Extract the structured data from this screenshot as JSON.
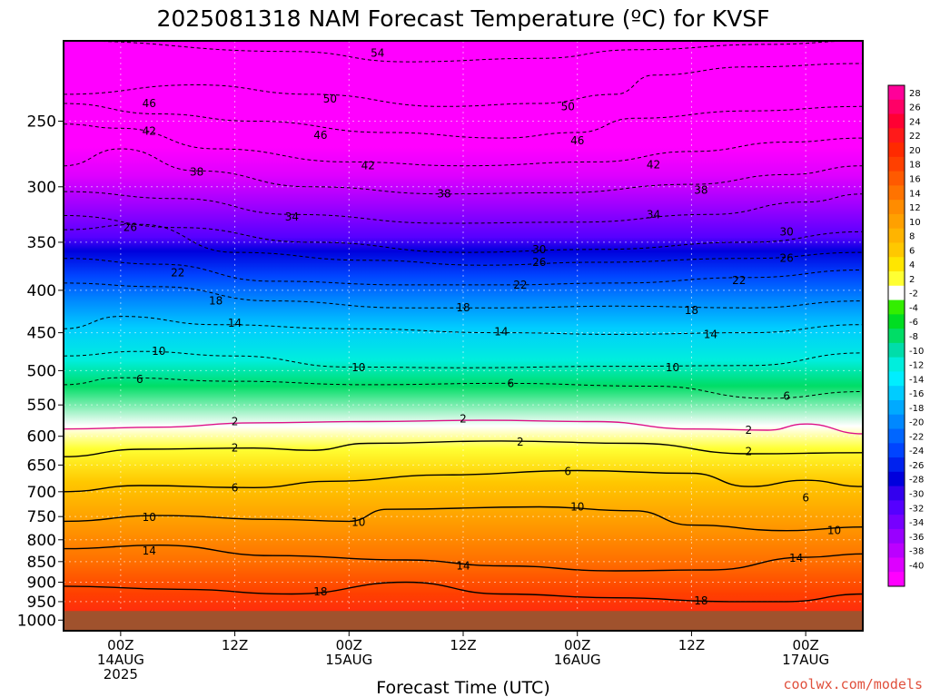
{
  "chart_data": {
    "type": "heatmap",
    "title": "2025081318 NAM Forecast Temperature (ºC) for KVSF",
    "xlabel": "Forecast Time (UTC)",
    "ylabel": "",
    "y_scale": "log-pressure",
    "y_tick_labels": [
      "250",
      "300",
      "350",
      "400",
      "450",
      "500",
      "550",
      "600",
      "650",
      "700",
      "750",
      "800",
      "850",
      "900",
      "950",
      "1000"
    ],
    "y_tick_values_hPa": [
      250,
      300,
      350,
      400,
      450,
      500,
      550,
      600,
      650,
      700,
      750,
      800,
      850,
      900,
      950,
      1000
    ],
    "ylim_hPa": [
      200,
      1030
    ],
    "xlim_hours": [
      -6,
      78
    ],
    "x_ticks": [
      {
        "hour": 0,
        "lines": [
          "00Z",
          "14AUG",
          "2025"
        ]
      },
      {
        "hour": 12,
        "lines": [
          "12Z"
        ]
      },
      {
        "hour": 24,
        "lines": [
          "00Z",
          "15AUG"
        ]
      },
      {
        "hour": 36,
        "lines": [
          "12Z"
        ]
      },
      {
        "hour": 48,
        "lines": [
          "00Z",
          "16AUG"
        ]
      },
      {
        "hour": 60,
        "lines": [
          "12Z"
        ]
      },
      {
        "hour": 72,
        "lines": [
          "00Z",
          "17AUG"
        ]
      }
    ],
    "grid": true,
    "surface_pressure_hPa": 975,
    "colorbar_labels": [
      "28",
      "26",
      "24",
      "22",
      "20",
      "18",
      "16",
      "14",
      "12",
      "10",
      "8",
      "6",
      "4",
      "2",
      "-2",
      "-4",
      "-6",
      "-8",
      "-10",
      "-12",
      "-14",
      "-16",
      "-18",
      "-20",
      "-22",
      "-24",
      "-26",
      "-28",
      "-30",
      "-32",
      "-34",
      "-36",
      "-38",
      "-40"
    ],
    "colorbar_colors": [
      "#ff0099",
      "#ff0066",
      "#ff0033",
      "#ff1a1a",
      "#ff2a00",
      "#ff4000",
      "#ff5a00",
      "#ff7300",
      "#ff8c00",
      "#ffa000",
      "#ffb400",
      "#ffc800",
      "#ffe600",
      "#ffff33",
      "#ffffff",
      "#33ee00",
      "#00dd22",
      "#00dd66",
      "#00ddaa",
      "#00eedd",
      "#00eeff",
      "#00ccff",
      "#00aaff",
      "#0088ff",
      "#0066ff",
      "#0044ff",
      "#0022ee",
      "#0000dd",
      "#3300ee",
      "#5500ff",
      "#7700ff",
      "#9900ff",
      "#bb00ff",
      "#dd00ff",
      "#ff00ff"
    ],
    "isotherms": [
      {
        "value": -54,
        "label": "54",
        "dashed": true,
        "points": [
          [
            -6,
            200
          ],
          [
            18,
            206
          ],
          [
            30,
            212
          ],
          [
            44,
            210
          ],
          [
            54,
            205
          ],
          [
            68,
            202
          ],
          [
            78,
            200
          ]
        ]
      },
      {
        "value": -50,
        "label": "50",
        "dashed": true,
        "points": [
          [
            -6,
            232
          ],
          [
            8,
            226
          ],
          [
            20,
            232
          ],
          [
            34,
            240
          ],
          [
            44,
            238
          ],
          [
            52,
            232
          ],
          [
            56,
            220
          ],
          [
            66,
            215
          ],
          [
            78,
            213
          ]
        ]
      },
      {
        "value": -46,
        "label": "46",
        "dashed": true,
        "points": [
          [
            -6,
            238
          ],
          [
            4,
            245
          ],
          [
            14,
            250
          ],
          [
            28,
            258
          ],
          [
            40,
            262
          ],
          [
            48,
            258
          ],
          [
            54,
            248
          ],
          [
            66,
            243
          ],
          [
            78,
            240
          ]
        ]
      },
      {
        "value": -42,
        "label": "42",
        "dashed": true,
        "points": [
          [
            -6,
            252
          ],
          [
            0,
            255
          ],
          [
            10,
            270
          ],
          [
            24,
            280
          ],
          [
            36,
            283
          ],
          [
            50,
            280
          ],
          [
            60,
            272
          ],
          [
            70,
            265
          ],
          [
            78,
            262
          ]
        ]
      },
      {
        "value": -38,
        "label": "38",
        "dashed": true,
        "points": [
          [
            -6,
            283
          ],
          [
            0,
            270
          ],
          [
            8,
            287
          ],
          [
            20,
            300
          ],
          [
            34,
            306
          ],
          [
            46,
            305
          ],
          [
            60,
            298
          ],
          [
            70,
            290
          ],
          [
            78,
            283
          ]
        ]
      },
      {
        "value": -34,
        "label": "34",
        "dashed": true,
        "points": [
          [
            -6,
            304
          ],
          [
            6,
            310
          ],
          [
            18,
            324
          ],
          [
            34,
            332
          ],
          [
            48,
            331
          ],
          [
            62,
            324
          ],
          [
            72,
            313
          ],
          [
            78,
            306
          ]
        ]
      },
      {
        "value": -30,
        "label": "30",
        "dashed": true,
        "points": [
          [
            -6,
            325
          ],
          [
            6,
            336
          ],
          [
            20,
            350
          ],
          [
            36,
            360
          ],
          [
            50,
            357
          ],
          [
            66,
            350
          ],
          [
            78,
            340
          ]
        ]
      },
      {
        "value": -26,
        "label": "26",
        "dashed": true,
        "points": [
          [
            -6,
            338
          ],
          [
            2,
            333
          ],
          [
            12,
            360
          ],
          [
            26,
            368
          ],
          [
            38,
            373
          ],
          [
            50,
            370
          ],
          [
            66,
            366
          ],
          [
            78,
            360
          ]
        ]
      },
      {
        "value": -22,
        "label": "22",
        "dashed": true,
        "points": [
          [
            -6,
            366
          ],
          [
            4,
            372
          ],
          [
            16,
            390
          ],
          [
            30,
            394
          ],
          [
            40,
            394
          ],
          [
            52,
            392
          ],
          [
            66,
            386
          ],
          [
            78,
            378
          ]
        ]
      },
      {
        "value": -18,
        "label": "18",
        "dashed": true,
        "points": [
          [
            -6,
            392
          ],
          [
            4,
            396
          ],
          [
            16,
            412
          ],
          [
            30,
            420
          ],
          [
            40,
            420
          ],
          [
            52,
            418
          ],
          [
            66,
            420
          ],
          [
            78,
            412
          ]
        ]
      },
      {
        "value": -14,
        "label": "14",
        "dashed": true,
        "points": [
          [
            -6,
            445
          ],
          [
            0,
            430
          ],
          [
            10,
            440
          ],
          [
            24,
            445
          ],
          [
            40,
            450
          ],
          [
            52,
            452
          ],
          [
            66,
            450
          ],
          [
            78,
            440
          ]
        ]
      },
      {
        "value": -10,
        "label": "10",
        "dashed": true,
        "points": [
          [
            -6,
            480
          ],
          [
            2,
            474
          ],
          [
            12,
            480
          ],
          [
            24,
            495
          ],
          [
            36,
            496
          ],
          [
            52,
            494
          ],
          [
            66,
            493
          ],
          [
            78,
            476
          ]
        ]
      },
      {
        "value": -6,
        "label": "6",
        "dashed": true,
        "points": [
          [
            -6,
            520
          ],
          [
            0,
            510
          ],
          [
            12,
            515
          ],
          [
            26,
            520
          ],
          [
            40,
            518
          ],
          [
            56,
            522
          ],
          [
            68,
            540
          ],
          [
            78,
            530
          ]
        ]
      },
      {
        "value": 2,
        "label": "2",
        "dashed": false,
        "points": [
          [
            -6,
            635
          ],
          [
            2,
            622
          ],
          [
            14,
            620
          ],
          [
            20,
            624
          ],
          [
            26,
            612
          ],
          [
            40,
            608
          ],
          [
            54,
            612
          ],
          [
            66,
            630
          ],
          [
            78,
            628
          ]
        ]
      },
      {
        "value": 6,
        "label": "6",
        "dashed": false,
        "points": [
          [
            -6,
            700
          ],
          [
            2,
            688
          ],
          [
            14,
            692
          ],
          [
            22,
            680
          ],
          [
            34,
            668
          ],
          [
            48,
            660
          ],
          [
            60,
            665
          ],
          [
            66,
            690
          ],
          [
            72,
            678
          ],
          [
            78,
            690
          ]
        ]
      },
      {
        "value": 10,
        "label": "10",
        "dashed": false,
        "points": [
          [
            -6,
            760
          ],
          [
            4,
            748
          ],
          [
            16,
            756
          ],
          [
            24,
            760
          ],
          [
            28,
            735
          ],
          [
            44,
            730
          ],
          [
            54,
            738
          ],
          [
            60,
            768
          ],
          [
            70,
            780
          ],
          [
            78,
            772
          ]
        ]
      },
      {
        "value": 14,
        "label": "14",
        "dashed": false,
        "points": [
          [
            -6,
            820
          ],
          [
            4,
            812
          ],
          [
            16,
            836
          ],
          [
            30,
            846
          ],
          [
            40,
            860
          ],
          [
            52,
            872
          ],
          [
            62,
            870
          ],
          [
            72,
            840
          ],
          [
            78,
            832
          ]
        ]
      },
      {
        "value": 18,
        "label": "18",
        "dashed": false,
        "points": [
          [
            -6,
            910
          ],
          [
            6,
            918
          ],
          [
            18,
            930
          ],
          [
            30,
            900
          ],
          [
            40,
            930
          ],
          [
            52,
            940
          ],
          [
            64,
            950
          ],
          [
            70,
            950
          ],
          [
            78,
            930
          ]
        ]
      }
    ],
    "freezing_line": {
      "value": 0,
      "points": [
        [
          -6,
          588
        ],
        [
          4,
          585
        ],
        [
          14,
          578
        ],
        [
          26,
          576
        ],
        [
          38,
          574
        ],
        [
          50,
          576
        ],
        [
          60,
          588
        ],
        [
          68,
          590
        ],
        [
          72,
          580
        ],
        [
          78,
          596
        ]
      ]
    },
    "contour_label_positions": [
      {
        "text": "54",
        "hour": 27,
        "p": 207
      },
      {
        "text": "46",
        "hour": 3,
        "p": 238
      },
      {
        "text": "50",
        "hour": 22,
        "p": 235
      },
      {
        "text": "50",
        "hour": 47,
        "p": 240
      },
      {
        "text": "42",
        "hour": 3,
        "p": 257
      },
      {
        "text": "46",
        "hour": 21,
        "p": 260
      },
      {
        "text": "46",
        "hour": 48,
        "p": 264
      },
      {
        "text": "38",
        "hour": 8,
        "p": 288
      },
      {
        "text": "42",
        "hour": 26,
        "p": 283
      },
      {
        "text": "42",
        "hour": 56,
        "p": 282
      },
      {
        "text": "38",
        "hour": 34,
        "p": 306
      },
      {
        "text": "38",
        "hour": 61,
        "p": 303
      },
      {
        "text": "34",
        "hour": 18,
        "p": 326
      },
      {
        "text": "34",
        "hour": 56,
        "p": 324
      },
      {
        "text": "30",
        "hour": 70,
        "p": 340
      },
      {
        "text": "26",
        "hour": 1,
        "p": 336
      },
      {
        "text": "30",
        "hour": 44,
        "p": 357
      },
      {
        "text": "26",
        "hour": 44,
        "p": 370
      },
      {
        "text": "26",
        "hour": 70,
        "p": 366
      },
      {
        "text": "22",
        "hour": 6,
        "p": 381
      },
      {
        "text": "22",
        "hour": 42,
        "p": 394
      },
      {
        "text": "22",
        "hour": 65,
        "p": 389
      },
      {
        "text": "18",
        "hour": 10,
        "p": 412
      },
      {
        "text": "18",
        "hour": 36,
        "p": 420
      },
      {
        "text": "18",
        "hour": 60,
        "p": 423
      },
      {
        "text": "14",
        "hour": 12,
        "p": 438
      },
      {
        "text": "14",
        "hour": 40,
        "p": 449
      },
      {
        "text": "14",
        "hour": 62,
        "p": 452
      },
      {
        "text": "10",
        "hour": 4,
        "p": 474
      },
      {
        "text": "10",
        "hour": 25,
        "p": 496
      },
      {
        "text": "10",
        "hour": 58,
        "p": 496
      },
      {
        "text": "6",
        "hour": 2,
        "p": 512
      },
      {
        "text": "6",
        "hour": 41,
        "p": 518
      },
      {
        "text": "6",
        "hour": 70,
        "p": 537
      },
      {
        "text": "2",
        "hour": 12,
        "p": 576
      },
      {
        "text": "2",
        "hour": 36,
        "p": 572
      },
      {
        "text": "2",
        "hour": 66,
        "p": 590
      },
      {
        "text": "2",
        "hour": 12,
        "p": 620
      },
      {
        "text": "2",
        "hour": 42,
        "p": 610
      },
      {
        "text": "2",
        "hour": 66,
        "p": 626
      },
      {
        "text": "6",
        "hour": 12,
        "p": 692
      },
      {
        "text": "6",
        "hour": 47,
        "p": 662
      },
      {
        "text": "6",
        "hour": 72,
        "p": 712
      },
      {
        "text": "10",
        "hour": 3,
        "p": 752
      },
      {
        "text": "10",
        "hour": 25,
        "p": 762
      },
      {
        "text": "10",
        "hour": 48,
        "p": 730
      },
      {
        "text": "10",
        "hour": 75,
        "p": 780
      },
      {
        "text": "14",
        "hour": 3,
        "p": 825
      },
      {
        "text": "14",
        "hour": 36,
        "p": 860
      },
      {
        "text": "14",
        "hour": 71,
        "p": 842
      },
      {
        "text": "18",
        "hour": 21,
        "p": 924
      },
      {
        "text": "18",
        "hour": 61,
        "p": 948
      }
    ]
  },
  "credit": "coolwx.com/models"
}
